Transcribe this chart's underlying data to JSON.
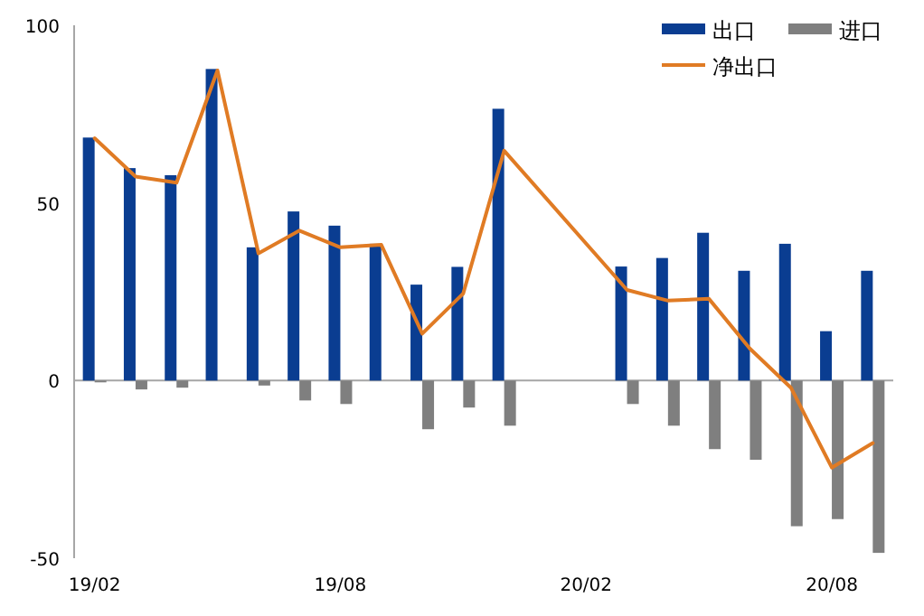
{
  "chart_data": {
    "type": "bar",
    "categories": [
      "19/02",
      null,
      null,
      null,
      null,
      null,
      "19/08",
      null,
      null,
      null,
      null,
      null,
      "20/02",
      null,
      null,
      null,
      null,
      null,
      "20/08",
      null
    ],
    "series": [
      {
        "name": "出口",
        "color": "#0a3d91",
        "values": [
          68.4,
          59.8,
          57.8,
          87.7,
          37.5,
          47.6,
          43.6,
          38.5,
          27,
          32,
          76.5,
          null,
          null,
          32.1,
          34.5,
          41.6,
          30.9,
          38.5,
          13.9,
          30.9
        ]
      },
      {
        "name": "进口",
        "color": "#7f7f7f",
        "values": [
          -0.5,
          -2.5,
          -2,
          0,
          -1.4,
          -5.6,
          -6.6,
          0,
          -13.7,
          -7.6,
          -12.7,
          null,
          null,
          -6.6,
          -12.7,
          -19.3,
          -22.3,
          -41,
          -39,
          -48.5
        ]
      },
      {
        "name": "净出口",
        "type": "line",
        "color": "#e07b24",
        "values": [
          68.2,
          57.4,
          55.7,
          87.3,
          35.8,
          42.2,
          37.5,
          38.2,
          13.2,
          24.5,
          64.7,
          null,
          null,
          25.5,
          22.5,
          23,
          9,
          -2,
          -24.5,
          -17.6
        ]
      }
    ],
    "ylim": [
      -50,
      100
    ],
    "yticks": [
      -50,
      0,
      50,
      100
    ],
    "legend": "top right"
  }
}
